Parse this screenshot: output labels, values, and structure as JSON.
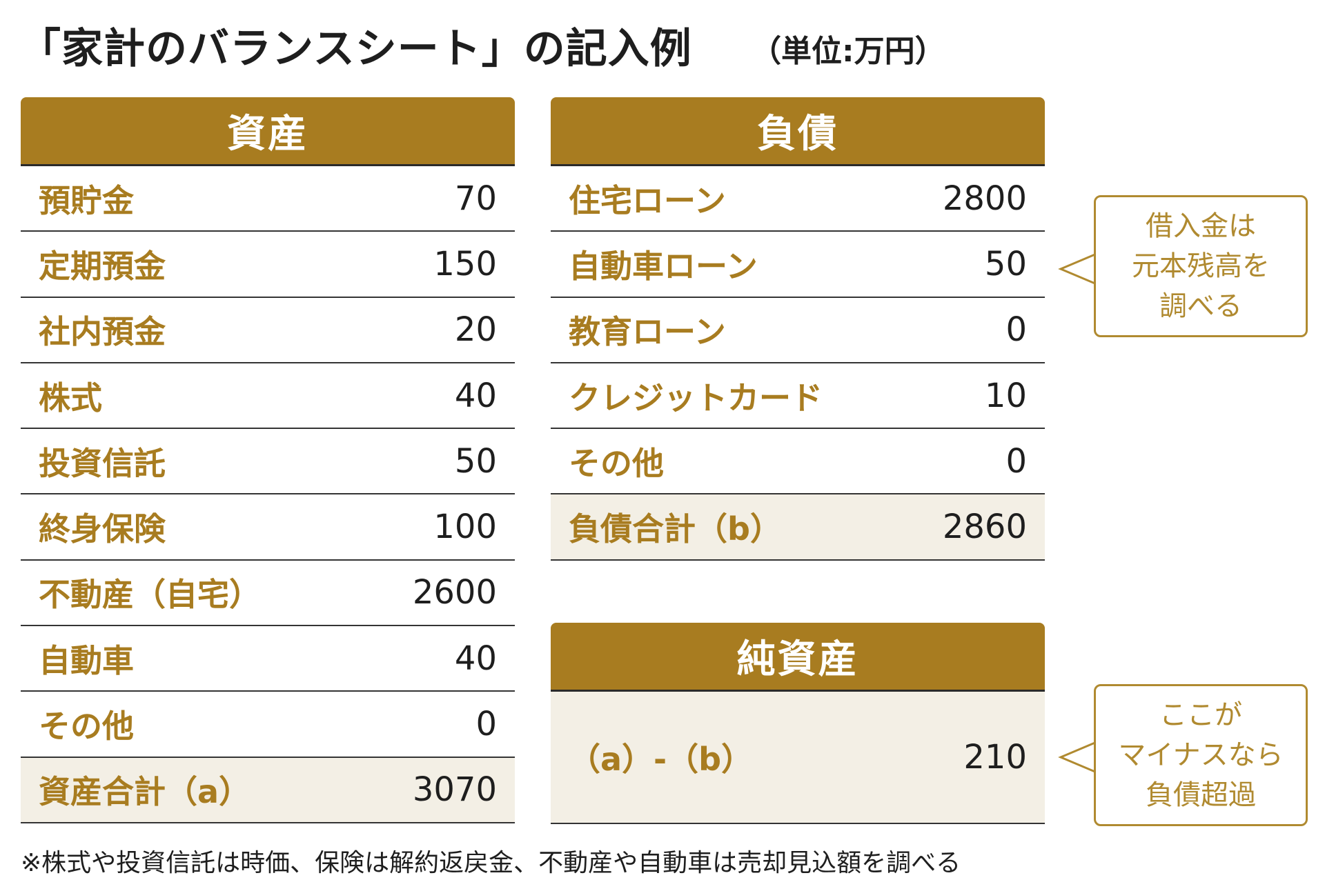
{
  "title": "「家計のバランスシート」の記入例",
  "unit": "（単位:万円）",
  "assets": {
    "header": "資産",
    "rows": [
      {
        "label": "預貯金",
        "value": "70"
      },
      {
        "label": "定期預金",
        "value": "150"
      },
      {
        "label": "社内預金",
        "value": "20"
      },
      {
        "label": "株式",
        "value": "40"
      },
      {
        "label": "投資信託",
        "value": "50"
      },
      {
        "label": "終身保険",
        "value": "100"
      },
      {
        "label": "不動産（自宅）",
        "value": "2600"
      },
      {
        "label": "自動車",
        "value": "40"
      },
      {
        "label": "その他",
        "value": "0"
      }
    ],
    "total": {
      "label": "資産合計（a）",
      "value": "3070"
    }
  },
  "liabilities": {
    "header": "負債",
    "rows": [
      {
        "label": "住宅ローン",
        "value": "2800"
      },
      {
        "label": "自動車ローン",
        "value": "50"
      },
      {
        "label": "教育ローン",
        "value": "0"
      },
      {
        "label": "クレジットカード",
        "value": "10"
      },
      {
        "label": "その他",
        "value": "0"
      }
    ],
    "total": {
      "label": "負債合計（b）",
      "value": "2860"
    }
  },
  "net_assets": {
    "header": "純資産",
    "label": "（a）-（b）",
    "value": "210"
  },
  "callouts": {
    "loan_note": "借入金は\n元本残高を\n調べる",
    "net_note": "ここが\nマイナスなら\n負債超過"
  },
  "footnote": "※株式や投資信託は時価、保険は解約返戻金、不動産や自動車は売却見込額を調べる",
  "colors": {
    "accent": "#a87c20",
    "total_bg": "#f3efe5",
    "callout_border": "#b08a30"
  }
}
